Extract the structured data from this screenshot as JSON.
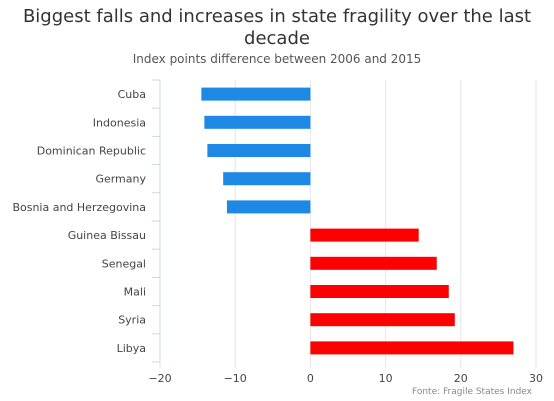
{
  "chart_data": {
    "type": "bar",
    "orientation": "horizontal",
    "title": "Biggest falls and increases in state fragility over the last decade",
    "subtitle": "Index points difference between 2006 and 2015",
    "source": "Fonte: Fragile States Index",
    "categories": [
      "Cuba",
      "Indonesia",
      "Dominican Republic",
      "Germany",
      "Bosnia and Herzegovina",
      "Guinea Bissau",
      "Senegal",
      "Mali",
      "Syria",
      "Libya"
    ],
    "values": [
      -14.5,
      -14.1,
      -13.7,
      -11.6,
      -11.1,
      14.4,
      16.8,
      18.4,
      19.2,
      27.0
    ],
    "xlim": [
      -20,
      30
    ],
    "xticks": [
      -20,
      -10,
      0,
      10,
      20,
      30
    ],
    "xtick_labels": [
      "−20",
      "−10",
      "0",
      "10",
      "20",
      "30"
    ],
    "colors": {
      "negative": "#1E88E5",
      "positive": "#FF0000"
    },
    "grid": true
  }
}
